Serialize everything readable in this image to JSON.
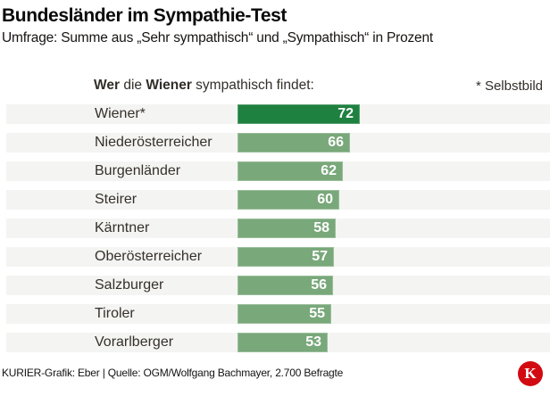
{
  "header": {
    "title": "Bundesländer im Sympathie-Test",
    "subtitle": "Umfrage: Summe aus „Sehr sympathisch“ und „Sympathisch“ in Prozent"
  },
  "chart_header": {
    "bold1": "Wer",
    "mid": " die ",
    "bold2": "Wiener",
    "rest": " sympathisch findet:",
    "note": "* Selbstbild"
  },
  "chart_data": {
    "type": "bar",
    "orientation": "horizontal",
    "title": "Bundesländer im Sympathie-Test",
    "subtitle": "Umfrage: Summe aus „Sehr sympathisch“ und „Sympathisch“ in Prozent",
    "categories": [
      "Wiener*",
      "Niederösterreicher",
      "Burgenländer",
      "Steirer",
      "Kärntner",
      "Oberösterreicher",
      "Salzburger",
      "Tiroler",
      "Vorarlberger"
    ],
    "values": [
      72,
      66,
      62,
      60,
      58,
      57,
      56,
      55,
      53
    ],
    "unit": "Prozent",
    "xlim": [
      0,
      72
    ],
    "grid": false,
    "legend": false,
    "highlight_index": 0,
    "highlight_meaning": "Selbstbild",
    "colors": {
      "bar": "#79a87a",
      "highlight_bar": "#1f8140",
      "row_stripe": "#f4f4f2",
      "value_text": "#ffffff",
      "label_text": "#35302b"
    }
  },
  "footer": {
    "credit": "KURIER-Grafik: Eber | Quelle: OGM/Wolfgang Bachmayer, 2.700 Befragte",
    "logo_letter": "K",
    "logo_color": "#d20a11"
  }
}
